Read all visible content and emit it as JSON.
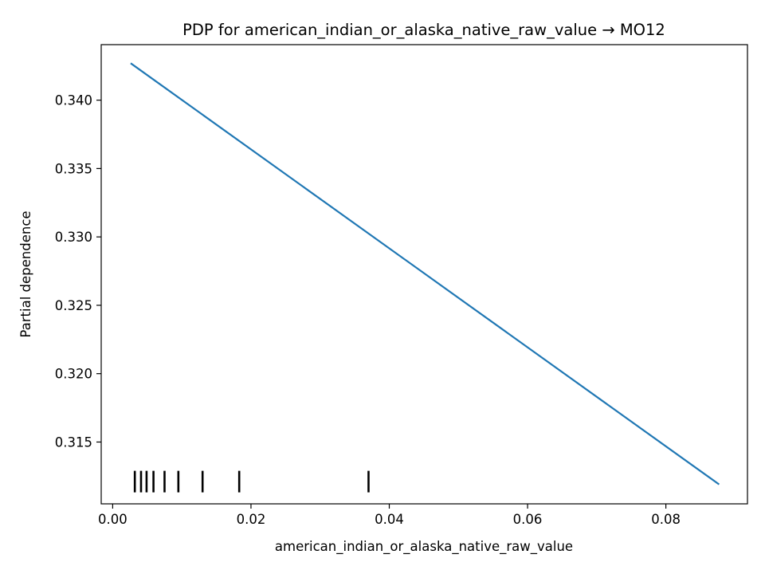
{
  "chart_data": {
    "type": "line",
    "title": "PDP for american_indian_or_alaska_native_raw_value → MO12",
    "xlabel": "american_indian_or_alaska_native_raw_value",
    "ylabel": "Partial dependence",
    "xlim": [
      -0.00166,
      0.0918
    ],
    "ylim": [
      0.31048,
      0.34406
    ],
    "x_ticks": [
      0.0,
      0.02,
      0.04,
      0.06,
      0.08
    ],
    "x_tick_labels": [
      "0.00",
      "0.02",
      "0.04",
      "0.06",
      "0.08"
    ],
    "y_ticks": [
      0.315,
      0.32,
      0.325,
      0.33,
      0.335,
      0.34
    ],
    "y_tick_labels": [
      "0.315",
      "0.320",
      "0.325",
      "0.330",
      "0.335",
      "0.340"
    ],
    "series": [
      {
        "color": "#1f77b4",
        "x": [
          0.0026,
          0.0877
        ],
        "y": [
          0.3427,
          0.3119
        ]
      }
    ],
    "rug": {
      "color": "#000000",
      "x": [
        0.0032,
        0.0041,
        0.0049,
        0.0059,
        0.0075,
        0.0095,
        0.013,
        0.0183,
        0.037
      ]
    },
    "grid": false,
    "legend": "none"
  }
}
